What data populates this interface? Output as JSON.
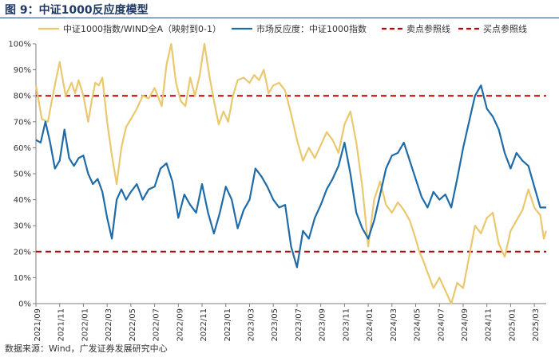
{
  "figure": {
    "title": "图 9：中证1000反应度模型",
    "source": "数据来源：Wind，广发证券发展研究中心"
  },
  "chart_data": {
    "type": "line",
    "title": "中证1000反应度模型",
    "xlabel": "",
    "ylabel": "",
    "ylim": [
      0,
      100
    ],
    "yticks": [
      0,
      10,
      20,
      30,
      40,
      50,
      60,
      70,
      80,
      90,
      100
    ],
    "ytick_labels": [
      "0%",
      "10%",
      "20%",
      "30%",
      "40%",
      "50%",
      "60%",
      "70%",
      "80%",
      "90%",
      "100%"
    ],
    "xlim": [
      0,
      43
    ],
    "xtick_labels": [
      "2021/09",
      "2021/11",
      "2022/01",
      "2022/03",
      "2022/05",
      "2022/07",
      "2022/09",
      "2022/11",
      "2023/01",
      "2023/03",
      "2023/05",
      "2023/07",
      "2023/09",
      "2023/11",
      "2024/01",
      "2024/03",
      "2024/05",
      "2024/07",
      "2024/09",
      "2024/11",
      "2025/01",
      "2025/03"
    ],
    "legend_position": "top",
    "series": [
      {
        "name": "中证1000指数/WIND全A（映射到0-1）",
        "color": "#EAC86E",
        "x": [
          0,
          0.5,
          1,
          1.5,
          2,
          2.5,
          3,
          3.3,
          3.6,
          4,
          4.4,
          4.7,
          5,
          5.3,
          5.6,
          6,
          6.4,
          6.8,
          7.2,
          7.6,
          8,
          8.5,
          9,
          9.5,
          10,
          10.6,
          11,
          11.4,
          11.8,
          12.2,
          12.6,
          13,
          13.4,
          13.8,
          14.2,
          14.6,
          15,
          15.4,
          15.8,
          16.2,
          16.6,
          17,
          17.5,
          18,
          18.4,
          18.8,
          19.2,
          19.6,
          20,
          20.5,
          21,
          21.5,
          22,
          22.5,
          23,
          23.5,
          24,
          24.5,
          25,
          25.5,
          26,
          26.5,
          27,
          27.5,
          28,
          28.5,
          29,
          29.5,
          30,
          30.5,
          31,
          31.5,
          32,
          32.3,
          32.6,
          33,
          33.5,
          34,
          34.5,
          35,
          35.5,
          36,
          36.5,
          37,
          37.5,
          38,
          38.5,
          39,
          39.5,
          40,
          40.5,
          41,
          41.5,
          42,
          42.5,
          42.8,
          43
        ],
        "y": [
          84,
          71,
          70,
          82,
          93,
          80,
          85,
          81,
          86,
          80,
          70,
          78,
          85,
          84,
          87,
          70,
          57,
          46,
          60,
          68,
          71,
          75,
          80,
          79,
          83,
          76,
          92,
          100,
          85,
          78,
          76,
          87,
          80,
          88,
          100,
          88,
          78,
          69,
          74,
          70,
          80,
          86,
          87,
          85,
          88,
          86,
          90,
          81,
          84,
          85,
          82,
          73,
          63,
          55,
          60,
          56,
          61,
          66,
          63,
          58,
          69,
          74,
          62,
          45,
          22,
          40,
          47,
          38,
          35,
          39,
          36,
          32,
          25,
          20,
          17,
          12,
          6,
          10,
          5,
          0,
          8,
          6,
          18,
          30,
          27,
          33,
          35,
          23,
          18,
          28,
          32,
          36,
          44,
          37,
          34,
          25,
          28
        ]
      },
      {
        "name": "市场反应度：中证1000指数",
        "color": "#1F6BA8",
        "x": [
          0,
          0.4,
          0.8,
          1.2,
          1.6,
          2,
          2.4,
          2.8,
          3.2,
          3.6,
          4,
          4.4,
          4.8,
          5.2,
          5.6,
          6,
          6.4,
          6.8,
          7.2,
          7.6,
          8,
          8.5,
          9,
          9.5,
          10,
          10.5,
          11,
          11.5,
          12,
          12.5,
          13,
          13.5,
          14,
          14.5,
          15,
          15.5,
          16,
          16.5,
          17,
          17.5,
          18,
          18.5,
          19,
          19.5,
          20,
          20.5,
          21,
          21.5,
          22,
          22.5,
          23,
          23.5,
          24,
          24.5,
          25,
          25.5,
          26,
          26.5,
          27,
          27.5,
          28,
          28.5,
          29,
          29.5,
          30,
          30.5,
          31,
          31.5,
          32,
          32.5,
          33,
          33.5,
          34,
          34.5,
          35,
          35.5,
          36,
          36.5,
          37,
          37.5,
          38,
          38.5,
          39,
          39.5,
          40,
          40.5,
          41,
          41.5,
          42,
          42.5,
          43
        ],
        "y": [
          63,
          62,
          70,
          62,
          52,
          55,
          67,
          56,
          53,
          56,
          57,
          50,
          46,
          48,
          43,
          33,
          25,
          40,
          44,
          40,
          43,
          46,
          40,
          44,
          45,
          52,
          54,
          47,
          33,
          42,
          38,
          35,
          46,
          35,
          27,
          35,
          45,
          40,
          29,
          36,
          40,
          52,
          49,
          45,
          40,
          37,
          38,
          22,
          14,
          28,
          25,
          33,
          38,
          44,
          48,
          53,
          62,
          50,
          35,
          29,
          25,
          32,
          42,
          52,
          57,
          58,
          62,
          55,
          48,
          41,
          37,
          43,
          40,
          42,
          37,
          48,
          60,
          70,
          80,
          84,
          75,
          72,
          67,
          58,
          52,
          58,
          55,
          53,
          45,
          37,
          37
        ]
      },
      {
        "name": "卖点参照线",
        "color": "#C00000",
        "dashed": true,
        "x": [
          0,
          43
        ],
        "y": [
          80,
          80
        ]
      },
      {
        "name": "买点参照线",
        "color": "#C00000",
        "dashed": true,
        "x": [
          0,
          43
        ],
        "y": [
          20,
          20
        ]
      }
    ]
  }
}
